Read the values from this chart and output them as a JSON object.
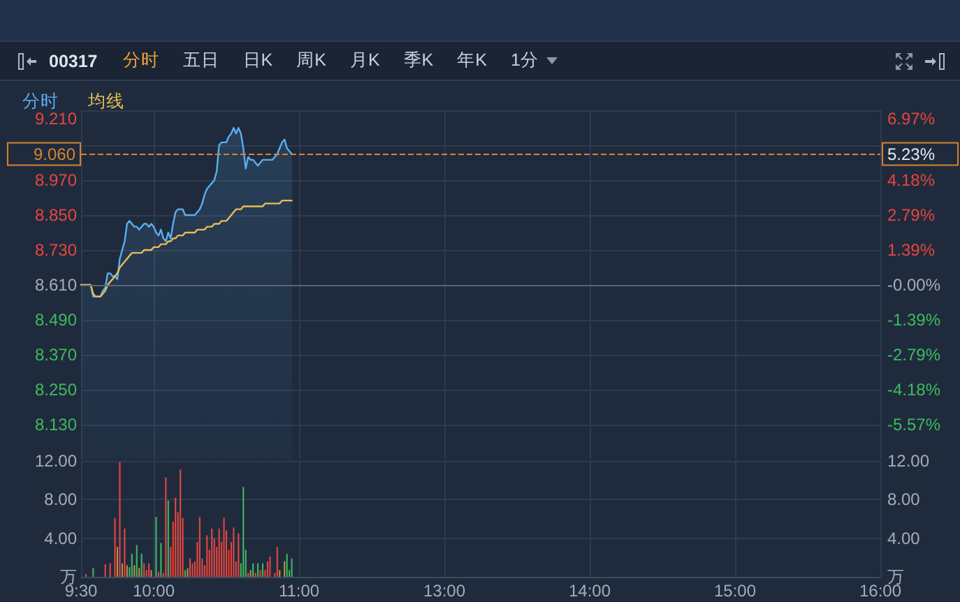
{
  "chart_data": [
    {
      "type": "other",
      "title": "00317",
      "annotations": [
        "分时",
        "五日",
        "日K",
        "周K",
        "月K",
        "季K",
        "年K",
        "1分"
      ]
    },
    {
      "type": "line",
      "annotations": [
        "5.23%"
      ],
      "categories": [
        null,
        null,
        null,
        null,
        null,
        null,
        null,
        null,
        null,
        null,
        null,
        null,
        null,
        null,
        null,
        null,
        null,
        null,
        null,
        null,
        null,
        null,
        null,
        null,
        null,
        null,
        null,
        null,
        null,
        null,
        null,
        null,
        null,
        null,
        null,
        null,
        null,
        null,
        null,
        null,
        null,
        null,
        null,
        null,
        null,
        null,
        null,
        null,
        null,
        null,
        null,
        null,
        null,
        null,
        null,
        null,
        null,
        null,
        null,
        null,
        null,
        null,
        null,
        null,
        null,
        null,
        null,
        null,
        null,
        null,
        null,
        null,
        null,
        null,
        null,
        null,
        null,
        null,
        null,
        null,
        null,
        null,
        null,
        null,
        null,
        null,
        null,
        null,
        null,
        null,
        null,
        null,
        null,
        null,
        null,
        null,
        null,
        null,
        null,
        null,
        null,
        null,
        null,
        null,
        null,
        null,
        null,
        null,
        null,
        null,
        null,
        null,
        null,
        null,
        null,
        null,
        null,
        null,
        null,
        null,
        null,
        null,
        null,
        null,
        null,
        null,
        null,
        null,
        null,
        null,
        null,
        null,
        null,
        null,
        null,
        null,
        null,
        null,
        null,
        null,
        null,
        null,
        null,
        null,
        null,
        null,
        null,
        null,
        null,
        null,
        null,
        null,
        null,
        null,
        null,
        null,
        null,
        null,
        null,
        null,
        null,
        null,
        null,
        null,
        null,
        null,
        null,
        null,
        null,
        null,
        null,
        null,
        null,
        null,
        null,
        null,
        null,
        null,
        null,
        null,
        null,
        null,
        null,
        null,
        null,
        null,
        null,
        null,
        null,
        null,
        null,
        null,
        null,
        null,
        null,
        null,
        null,
        null,
        null,
        null,
        null,
        null,
        null,
        null,
        null,
        null,
        null,
        null,
        null,
        null,
        null,
        null,
        null,
        null,
        null,
        null,
        null,
        null,
        null,
        null,
        null,
        null,
        null,
        null,
        null,
        null,
        null,
        null,
        null,
        null,
        null,
        null,
        null,
        null,
        null,
        null,
        null,
        null,
        null,
        null,
        null,
        null,
        null,
        null,
        null,
        null,
        null,
        null,
        null,
        null,
        null,
        null,
        null,
        null,
        null,
        null,
        null,
        null,
        null,
        null,
        null,
        null,
        null,
        null,
        null,
        null,
        null,
        null,
        null,
        null,
        null,
        null,
        null,
        null,
        null,
        null,
        null,
        null,
        null,
        null,
        null,
        null,
        null,
        null,
        null,
        null,
        null,
        null,
        null,
        null,
        null,
        null,
        null,
        null,
        null,
        null,
        null,
        null,
        null,
        null,
        null,
        null,
        null,
        null,
        null,
        null,
        null,
        null,
        null,
        null,
        null,
        null,
        null,
        null,
        null,
        null,
        null,
        null,
        null,
        null,
        null,
        null,
        null,
        null,
        null,
        null,
        null,
        null,
        null,
        null,
        null
      ],
      "series": [
        {
          "name": "分时",
          "type": "area",
          "color": "#5aaef0",
          "values": [
            8.61,
            8.61,
            8.61,
            8.61,
            8.61,
            8.57,
            8.57,
            8.57,
            8.57,
            8.59,
            8.6,
            8.65,
            8.65,
            8.64,
            8.64,
            8.63,
            8.7,
            8.73,
            8.76,
            8.82,
            8.83,
            8.82,
            8.81,
            8.81,
            8.8,
            8.81,
            8.82,
            8.82,
            8.81,
            8.82,
            8.81,
            8.79,
            8.78,
            8.8,
            8.77,
            8.76,
            8.79,
            8.77,
            8.82,
            8.86,
            8.87,
            8.87,
            8.87,
            8.85,
            8.85,
            8.85,
            8.85,
            8.85,
            8.86,
            8.87,
            8.89,
            8.92,
            8.94,
            8.95,
            8.96,
            8.97,
            9.0,
            9.09,
            9.1,
            9.1,
            9.1,
            9.12,
            9.13,
            9.15,
            9.13,
            9.15,
            9.13,
            9.08,
            9.01,
            9.05,
            9.04,
            9.04,
            9.03,
            9.02,
            9.03,
            9.04,
            9.04,
            9.04,
            9.04,
            9.04,
            9.05,
            9.06,
            9.08,
            9.1,
            9.11,
            9.08,
            9.07,
            9.06,
            null,
            null,
            null,
            null,
            null,
            null,
            null,
            null,
            null,
            null,
            null,
            null,
            null,
            null,
            null,
            null,
            null,
            null,
            null,
            null,
            null,
            null,
            null,
            null,
            null,
            null,
            null,
            null,
            null,
            null,
            null,
            null,
            null,
            null,
            null,
            null,
            null,
            null,
            null,
            null,
            null,
            null,
            null,
            null,
            null,
            null,
            null,
            null,
            null,
            null,
            null,
            null,
            null,
            null,
            null,
            null,
            null,
            null,
            null,
            null,
            null,
            null,
            null,
            null,
            null,
            null,
            null,
            null,
            null,
            null,
            null,
            null,
            null,
            null,
            null,
            null,
            null,
            null,
            null,
            null,
            null,
            null,
            null,
            null,
            null,
            null,
            null,
            null,
            null,
            null,
            null,
            null,
            null,
            null,
            null,
            null,
            null,
            null,
            null,
            null,
            null,
            null,
            null,
            null,
            null,
            null,
            null,
            null,
            null,
            null,
            null,
            null,
            null,
            null,
            null,
            null,
            null,
            null,
            null,
            null,
            null,
            null,
            null,
            null,
            null,
            null,
            null,
            null,
            null,
            null,
            null,
            null,
            null,
            null,
            null,
            null,
            null,
            null,
            null,
            null,
            null,
            null,
            null,
            null,
            null,
            null,
            null,
            null,
            null,
            null,
            null,
            null,
            null,
            null,
            null,
            null,
            null,
            null,
            null,
            null,
            null,
            null,
            null,
            null,
            null,
            null,
            null,
            null,
            null,
            null,
            null,
            null,
            null,
            null,
            null,
            null,
            null,
            null,
            null,
            null,
            null,
            null,
            null,
            null,
            null,
            null,
            null,
            null,
            null,
            null,
            null,
            null,
            null,
            null,
            null,
            null,
            null,
            null,
            null,
            null,
            null,
            null,
            null,
            null,
            null,
            null,
            null,
            null,
            null,
            null,
            null,
            null,
            null,
            null,
            null,
            null,
            null,
            null,
            null,
            null,
            null,
            null,
            null,
            null,
            null,
            null,
            null,
            null,
            null,
            null,
            null,
            null,
            null,
            null,
            null,
            null,
            null,
            null,
            null,
            null,
            null,
            null,
            null
          ]
        },
        {
          "name": "均线",
          "color": "#e8bd55",
          "values": [
            8.61,
            8.61,
            8.61,
            8.61,
            8.61,
            8.58,
            8.57,
            8.57,
            8.57,
            8.58,
            8.59,
            8.61,
            8.62,
            8.63,
            8.64,
            8.65,
            8.67,
            8.68,
            8.69,
            8.7,
            8.71,
            8.72,
            8.72,
            8.72,
            8.72,
            8.72,
            8.73,
            8.73,
            8.73,
            8.73,
            8.74,
            8.74,
            8.74,
            8.75,
            8.75,
            8.75,
            8.76,
            8.76,
            8.77,
            8.77,
            8.78,
            8.78,
            8.78,
            8.79,
            8.79,
            8.79,
            8.79,
            8.79,
            8.8,
            8.8,
            8.8,
            8.8,
            8.81,
            8.81,
            8.81,
            8.82,
            8.82,
            8.82,
            8.83,
            8.83,
            8.83,
            8.84,
            8.85,
            8.86,
            8.87,
            8.87,
            8.87,
            8.88,
            8.88,
            8.88,
            8.88,
            8.88,
            8.88,
            8.88,
            8.88,
            8.88,
            8.89,
            8.89,
            8.89,
            8.89,
            8.89,
            8.89,
            8.89,
            8.9,
            8.9,
            8.9,
            8.9,
            8.9,
            null,
            null,
            null,
            null,
            null,
            null,
            null,
            null,
            null,
            null,
            null,
            null,
            null,
            null,
            null,
            null,
            null,
            null,
            null,
            null,
            null,
            null,
            null,
            null,
            null,
            null,
            null,
            null,
            null,
            null,
            null,
            null,
            null,
            null,
            null,
            null,
            null,
            null,
            null,
            null,
            null,
            null,
            null,
            null,
            null,
            null,
            null,
            null,
            null,
            null,
            null,
            null,
            null,
            null,
            null,
            null,
            null,
            null,
            null,
            null,
            null,
            null,
            null,
            null,
            null,
            null,
            null,
            null,
            null,
            null,
            null,
            null,
            null,
            null,
            null,
            null,
            null,
            null,
            null,
            null,
            null,
            null,
            null,
            null,
            null,
            null,
            null,
            null,
            null,
            null,
            null,
            null,
            null,
            null,
            null,
            null,
            null,
            null,
            null,
            null,
            null,
            null,
            null,
            null,
            null,
            null,
            null,
            null,
            null,
            null,
            null,
            null,
            null,
            null,
            null,
            null,
            null,
            null,
            null,
            null,
            null,
            null,
            null,
            null,
            null,
            null,
            null,
            null,
            null,
            null,
            null,
            null,
            null,
            null,
            null,
            null,
            null,
            null,
            null,
            null,
            null,
            null,
            null,
            null,
            null,
            null,
            null,
            null,
            null,
            null,
            null,
            null,
            null,
            null,
            null,
            null,
            null,
            null,
            null,
            null,
            null,
            null,
            null,
            null,
            null,
            null,
            null,
            null,
            null,
            null,
            null,
            null,
            null,
            null,
            null,
            null,
            null,
            null,
            null,
            null,
            null,
            null,
            null,
            null,
            null,
            null,
            null,
            null,
            null,
            null,
            null,
            null,
            null,
            null,
            null,
            null,
            null,
            null,
            null,
            null,
            null,
            null,
            null,
            null,
            null,
            null,
            null,
            null,
            null,
            null,
            null,
            null,
            null,
            null,
            null,
            null,
            null,
            null,
            null,
            null,
            null,
            null,
            null,
            null,
            null,
            null,
            null,
            null,
            null,
            null,
            null,
            null,
            null,
            null,
            null,
            null,
            null,
            null,
            null,
            null,
            null,
            null,
            null
          ]
        }
      ],
      "ylim": [
        8.01,
        9.21
      ],
      "yticks": [
        {
          "value": 8.13,
          "label": "8.130"
        },
        {
          "value": 8.25,
          "label": "8.250"
        },
        {
          "value": 8.37,
          "label": "8.370"
        },
        {
          "value": 8.49,
          "label": "8.490"
        },
        {
          "value": 8.61,
          "label": "8.610"
        },
        {
          "value": 8.73,
          "label": "8.730"
        },
        {
          "value": 8.85,
          "label": "8.850"
        },
        {
          "value": 8.97,
          "label": "8.970"
        },
        {
          "value": 9.09,
          "label": null
        },
        {
          "value": 9.21,
          "label": "9.210"
        }
      ],
      "y2lim": [
        -6.97,
        6.97
      ],
      "y2ticks": [
        {
          "value": -5.57,
          "label": "-5.57%"
        },
        {
          "value": -4.18,
          "label": "-4.18%"
        },
        {
          "value": -2.79,
          "label": "-2.79%"
        },
        {
          "value": -1.39,
          "label": "-1.39%"
        },
        {
          "value": 0,
          "label": "-0.00%"
        },
        {
          "value": 1.39,
          "label": "1.39%"
        },
        {
          "value": 2.79,
          "label": "2.79%"
        },
        {
          "value": 4.18,
          "label": "4.18%"
        },
        {
          "value": 5.57,
          "label": null
        },
        {
          "value": 6.97,
          "label": "6.97%"
        }
      ],
      "ref_lines": [
        {
          "axis": "y",
          "value": 8.61,
          "color": "#56667d"
        },
        {
          "axis": "y",
          "value": 9.06,
          "label": "9.060",
          "color": "#d9832c",
          "line_style": "dashed"
        }
      ],
      "grid": true,
      "legend": "top left",
      "marker": "none",
      "tick_labels": "y"
    },
    {
      "type": "bar",
      "categories": [
        "9:30",
        null,
        null,
        null,
        null,
        null,
        null,
        null,
        null,
        null,
        null,
        null,
        null,
        null,
        null,
        null,
        null,
        null,
        null,
        null,
        null,
        null,
        null,
        null,
        null,
        null,
        null,
        null,
        null,
        null,
        "10:00",
        null,
        null,
        null,
        null,
        null,
        null,
        null,
        null,
        null,
        null,
        null,
        null,
        null,
        null,
        null,
        null,
        null,
        null,
        null,
        null,
        null,
        null,
        null,
        null,
        null,
        null,
        null,
        null,
        null,
        null,
        null,
        null,
        null,
        null,
        null,
        null,
        null,
        null,
        null,
        null,
        null,
        null,
        null,
        null,
        null,
        null,
        null,
        null,
        null,
        null,
        null,
        null,
        null,
        null,
        null,
        null,
        null,
        null,
        null,
        "11:00",
        null,
        null,
        null,
        null,
        null,
        null,
        null,
        null,
        null,
        null,
        null,
        null,
        null,
        null,
        null,
        null,
        null,
        null,
        null,
        null,
        null,
        null,
        null,
        null,
        null,
        null,
        null,
        null,
        null,
        null,
        null,
        null,
        null,
        null,
        null,
        null,
        null,
        null,
        null,
        null,
        null,
        null,
        null,
        null,
        null,
        null,
        null,
        null,
        null,
        null,
        null,
        null,
        null,
        null,
        null,
        null,
        null,
        null,
        null,
        "13:00",
        null,
        null,
        null,
        null,
        null,
        null,
        null,
        null,
        null,
        null,
        null,
        null,
        null,
        null,
        null,
        null,
        null,
        null,
        null,
        null,
        null,
        null,
        null,
        null,
        null,
        null,
        null,
        null,
        null,
        null,
        null,
        null,
        null,
        null,
        null,
        null,
        null,
        null,
        null,
        null,
        null,
        null,
        null,
        null,
        null,
        null,
        null,
        null,
        null,
        null,
        null,
        null,
        null,
        null,
        null,
        null,
        null,
        null,
        null,
        "14:00",
        null,
        null,
        null,
        null,
        null,
        null,
        null,
        null,
        null,
        null,
        null,
        null,
        null,
        null,
        null,
        null,
        null,
        null,
        null,
        null,
        null,
        null,
        null,
        null,
        null,
        null,
        null,
        null,
        null,
        null,
        null,
        null,
        null,
        null,
        null,
        null,
        null,
        null,
        null,
        null,
        null,
        null,
        null,
        null,
        null,
        null,
        null,
        null,
        null,
        null,
        null,
        null,
        null,
        null,
        null,
        null,
        null,
        null,
        null,
        "15:00",
        null,
        null,
        null,
        null,
        null,
        null,
        null,
        null,
        null,
        null,
        null,
        null,
        null,
        null,
        null,
        null,
        null,
        null,
        null,
        null,
        null,
        null,
        null,
        null,
        null,
        null,
        null,
        null,
        null,
        null,
        null,
        null,
        null,
        null,
        null,
        null,
        null,
        null,
        null,
        null,
        null,
        null,
        null,
        null,
        null,
        null,
        null,
        null,
        null,
        null,
        null,
        null,
        null,
        null,
        null,
        null,
        null,
        null,
        null,
        "16:00"
      ],
      "values": [
        null,
        null,
        0.3,
        null,
        null,
        0.9,
        null,
        null,
        null,
        null,
        1.3,
        null,
        1.4,
        null,
        6.1,
        3.1,
        11.9,
        1.4,
        5.0,
        1.2,
        1.0,
        2.4,
        1.2,
        3.3,
        0.9,
        2.4,
        1.4,
        0.7,
        1.4,
        0.7,
        null,
        6.2,
        0.5,
        3.5,
        0.4,
        10.3,
        7.9,
        3.1,
        5.7,
        8.2,
        6.7,
        11.1,
        6.1,
        0.7,
        0.9,
        1.9,
        1.4,
        1.6,
        3.6,
        6.2,
        1.9,
        1.2,
        4.3,
        2.8,
        5.0,
        4.0,
        3.1,
        5.0,
        3.6,
        6.1,
        4.8,
        2.8,
        3.6,
        5.1,
        1.6,
        4.5,
        1.4,
        9.3,
        2.8,
        0.4,
        0.7,
        1.4,
        0.4,
        1.4,
        0.7,
        1.4,
        0.7,
        1.6,
        2.1,
        null,
        0.4,
        3.1,
        0.7,
        null,
        1.6,
        2.4,
        0.7,
        1.9,
        null,
        null,
        null,
        null,
        null,
        null,
        null,
        null,
        null,
        null,
        null,
        null,
        null,
        null,
        null,
        null,
        null,
        null,
        null,
        null,
        null,
        null,
        null,
        null,
        null,
        null,
        null,
        null,
        null,
        null,
        null,
        null,
        null,
        null,
        null,
        null,
        null,
        null,
        null,
        null,
        null,
        null,
        null,
        null,
        null,
        null,
        null,
        null,
        null,
        null,
        null,
        null,
        null,
        null,
        null,
        null,
        null,
        null,
        null,
        null,
        null,
        null,
        null,
        null,
        null,
        null,
        null,
        null,
        null,
        null,
        null,
        null,
        null,
        null,
        null,
        null,
        null,
        null,
        null,
        null,
        null,
        null,
        null,
        null,
        null,
        null,
        null,
        null,
        null,
        null,
        null,
        null,
        null,
        null,
        null,
        null,
        null,
        null,
        null,
        null,
        null,
        null,
        null,
        null,
        null,
        null,
        null,
        null,
        null,
        null,
        null,
        null,
        null,
        null,
        null,
        null,
        null,
        null,
        null,
        null,
        null,
        null,
        null,
        null,
        null,
        null,
        null,
        null,
        null,
        null,
        null,
        null,
        null,
        null,
        null,
        null,
        null,
        null,
        null,
        null,
        null,
        null,
        null,
        null,
        null,
        null,
        null,
        null,
        null,
        null,
        null,
        null,
        null,
        null,
        null,
        null,
        null,
        null,
        null,
        null,
        null,
        null,
        null,
        null,
        null,
        null,
        null,
        null,
        null,
        null,
        null,
        null,
        null,
        null,
        null,
        null,
        null,
        null,
        null,
        null,
        null,
        null,
        null,
        null,
        null,
        null,
        null,
        null,
        null,
        null,
        null,
        null,
        null,
        null,
        null,
        null,
        null,
        null,
        null,
        null,
        null,
        null,
        null,
        null,
        null,
        null,
        null,
        null,
        null,
        null,
        null,
        null,
        null,
        null,
        null,
        null,
        null,
        null,
        null,
        null,
        null,
        null,
        null,
        null,
        null,
        null,
        null,
        null,
        null,
        null,
        null,
        null,
        null,
        null,
        null,
        null,
        null,
        null,
        null,
        null,
        null,
        null,
        null
      ],
      "colors": [
        null,
        null,
        "#e8453f",
        null,
        null,
        "#3dbb5f",
        null,
        null,
        null,
        null,
        "#e8453f",
        null,
        "#e8453f",
        null,
        "#e8453f",
        "#c48c45",
        "#e8453f",
        "#c48c45",
        "#e8453f",
        "#c48c45",
        "#3dbb5f",
        "#3dbb5f",
        "#c48c45",
        "#3dbb5f",
        "#c48c45",
        "#3dbb5f",
        "#e8453f",
        "#e8453f",
        "#e8453f",
        "#c48c45",
        null,
        "#3dbb5f",
        "#e8453f",
        "#3dbb5f",
        "#e8453f",
        "#e8453f",
        "#3dbb5f",
        "#e8453f",
        "#ff3b24",
        "#e8453f",
        "#e8453f",
        "#e8453f",
        "#e8453f",
        "#3dbb5f",
        "#c48c45",
        "#e8453f",
        "#e8453f",
        "#e8453f",
        "#e8453f",
        "#e8453f",
        "#e8453f",
        "#e8453f",
        "#e8453f",
        "#e8453f",
        "#e8453f",
        "#e8453f",
        "#e8453f",
        "#e8453f",
        "#e8453f",
        "#e8453f",
        "#e8453f",
        "#ff3b24",
        "#e8453f",
        "#e8453f",
        "#e8453f",
        "#e8453f",
        "#3dbb5f",
        "#3dbb5f",
        "#3dbb5f",
        "#e8453f",
        "#c48c45",
        "#3dbb5f",
        "#e8453f",
        "#3dbb5f",
        "#e8453f",
        "#3dbb5f",
        "#e8453f",
        "#e8453f",
        "#e8453f",
        null,
        "#e8453f",
        "#e8453f",
        "#c48c45",
        null,
        "#c48c45",
        "#3dbb5f",
        "#3dbb5f",
        "#3dbb5f",
        null,
        null,
        null,
        null,
        null,
        null,
        null,
        null,
        null,
        null,
        null,
        null,
        null,
        null,
        null,
        null,
        null,
        null,
        null,
        null,
        null,
        null,
        null,
        null,
        null,
        null,
        null,
        null,
        null,
        null,
        null,
        null,
        null,
        null,
        null,
        null,
        null,
        null,
        null,
        null,
        null,
        null,
        null,
        null,
        null,
        null,
        null,
        null,
        null,
        null,
        null,
        null,
        null,
        null,
        null,
        null,
        null,
        null,
        null,
        null,
        null,
        null,
        null,
        null,
        null,
        null,
        null,
        null,
        null,
        null,
        null,
        null,
        null,
        null,
        null,
        null,
        null,
        null,
        null,
        null,
        null,
        null,
        null,
        null,
        null,
        null,
        null,
        null,
        null,
        null,
        null,
        null,
        null,
        null,
        null,
        null,
        null,
        null,
        null,
        null,
        null,
        null,
        null,
        null,
        null,
        null,
        null,
        null,
        null,
        null,
        null,
        null,
        null,
        null,
        null,
        null,
        null,
        null,
        null,
        null,
        null,
        null,
        null,
        null,
        null,
        null,
        null,
        null,
        null,
        null,
        null,
        null,
        null,
        null,
        null,
        null,
        null,
        null,
        null,
        null,
        null,
        null,
        null,
        null,
        null,
        null,
        null,
        null,
        null,
        null,
        null,
        null,
        null,
        null,
        null,
        null,
        null,
        null,
        null,
        null,
        null,
        null,
        null,
        null,
        null,
        null,
        null,
        null,
        null,
        null,
        null,
        null,
        null,
        null,
        null,
        null,
        null,
        null,
        null,
        null,
        null,
        null,
        null,
        null,
        null,
        null,
        null,
        null,
        null,
        null,
        null,
        null,
        null,
        null,
        null,
        null,
        null,
        null,
        null,
        null,
        null,
        null,
        null,
        null,
        null,
        null,
        null,
        null,
        null,
        null,
        null,
        null,
        null,
        null,
        null,
        null,
        null,
        null,
        null,
        null,
        null,
        null,
        null,
        null,
        null,
        null,
        null,
        null,
        null,
        null,
        null,
        null,
        null,
        null,
        null,
        null,
        null,
        null,
        null,
        null,
        null,
        null,
        null
      ],
      "ylim": [
        0,
        12
      ],
      "yticks": [
        {
          "value": 0,
          "label": "万"
        },
        {
          "value": 4,
          "label": "4.00"
        },
        {
          "value": 8,
          "label": "8.00"
        },
        {
          "value": 12,
          "label": "12.00"
        }
      ],
      "y2lim": [
        0,
        12
      ],
      "y2ticks": [
        {
          "value": 0,
          "label": "万"
        },
        {
          "value": 4,
          "label": "4.00"
        },
        {
          "value": 8,
          "label": "8.00"
        },
        {
          "value": 12,
          "label": "12.00"
        }
      ],
      "grid": true
    }
  ]
}
